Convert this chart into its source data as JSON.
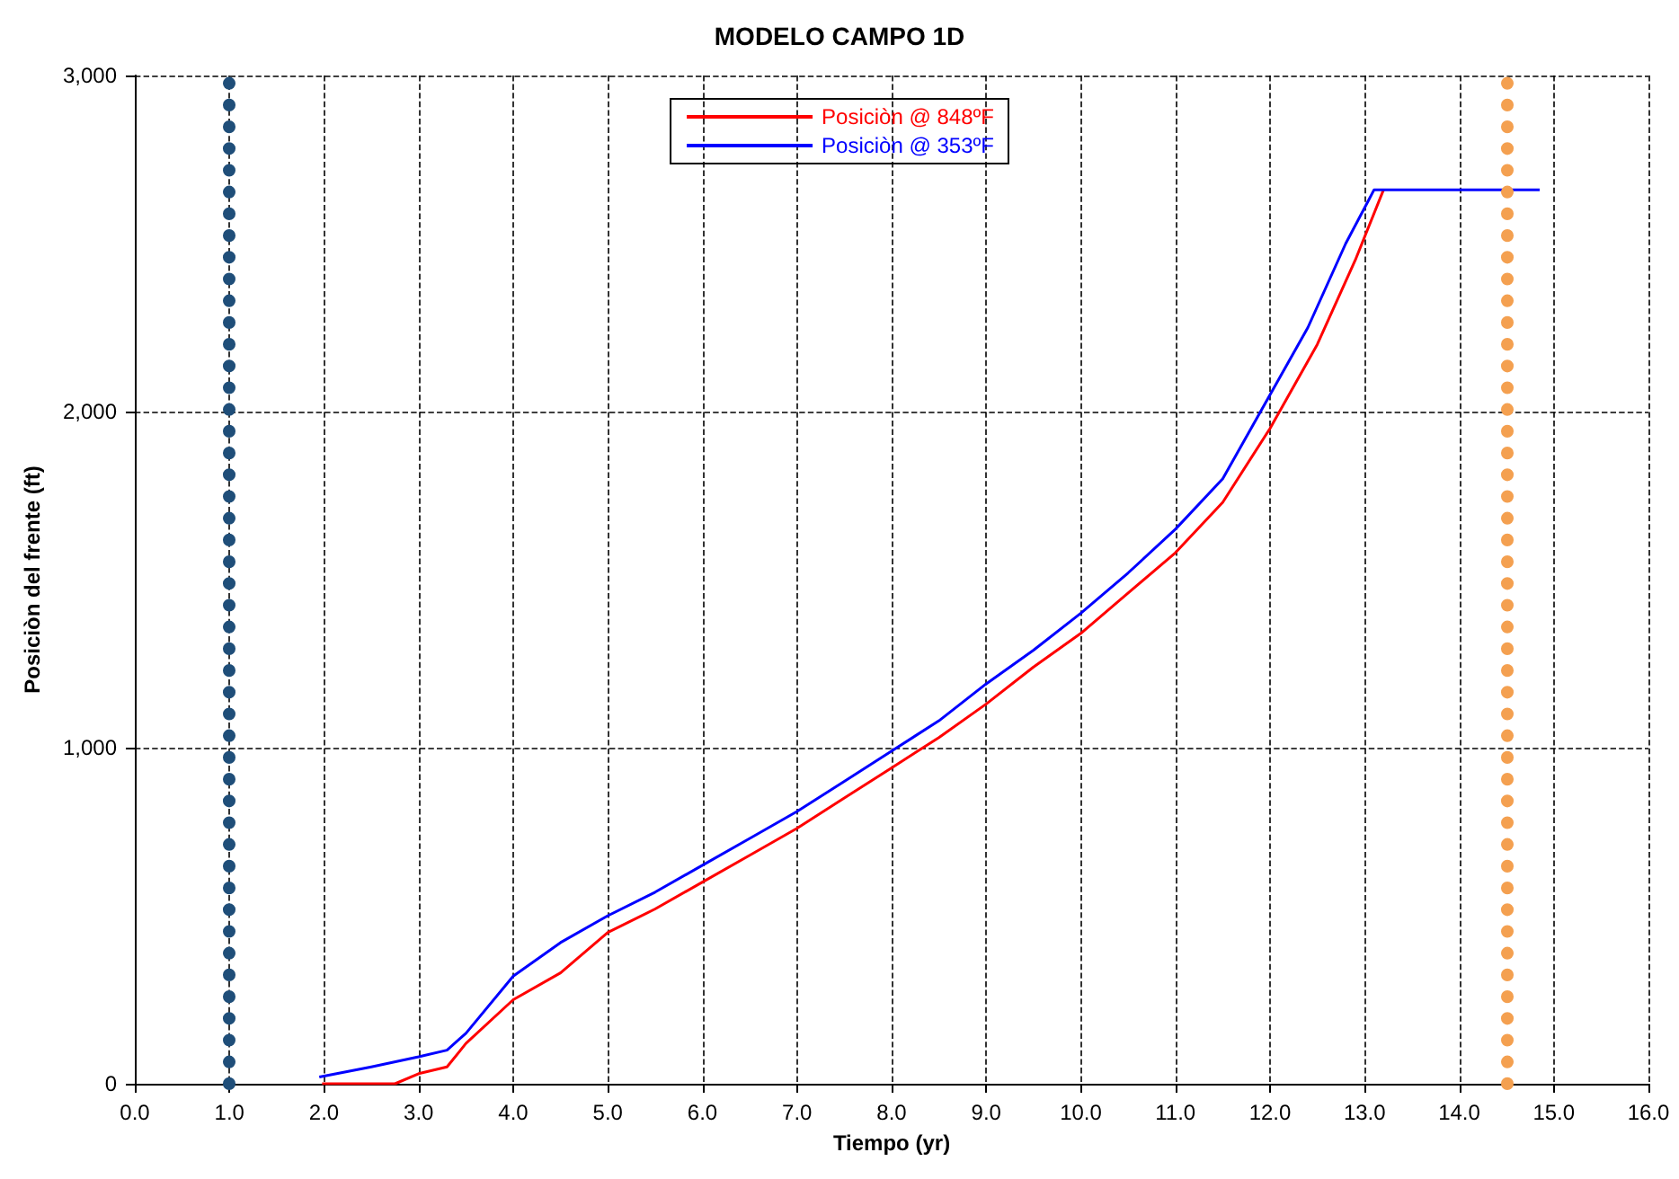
{
  "chart_data": {
    "type": "line",
    "title": "MODELO CAMPO 1D",
    "xlabel": "Tiempo (yr)",
    "ylabel": "Posiciòn del frente (ft)",
    "xlim": [
      0,
      16
    ],
    "ylim": [
      0,
      3000
    ],
    "xticks": [
      {
        "value": 0,
        "label": "0.0"
      },
      {
        "value": 1,
        "label": "1.0"
      },
      {
        "value": 2,
        "label": "2.0"
      },
      {
        "value": 3,
        "label": "3.0"
      },
      {
        "value": 4,
        "label": "4.0"
      },
      {
        "value": 5,
        "label": "5.0"
      },
      {
        "value": 6,
        "label": "6.0"
      },
      {
        "value": 7,
        "label": "7.0"
      },
      {
        "value": 8,
        "label": "8.0"
      },
      {
        "value": 9,
        "label": "9.0"
      },
      {
        "value": 10,
        "label": "10.0"
      },
      {
        "value": 11,
        "label": "11.0"
      },
      {
        "value": 12,
        "label": "12.0"
      },
      {
        "value": 13,
        "label": "13.0"
      },
      {
        "value": 14,
        "label": "14.0"
      },
      {
        "value": 15,
        "label": "15.0"
      },
      {
        "value": 16,
        "label": "16.0"
      }
    ],
    "yticks": [
      0,
      {
        "value": 1000,
        "label": "1,000"
      },
      {
        "value": 2000,
        "label": "2,000"
      },
      {
        "value": 3000,
        "label": "3,000"
      }
    ],
    "grid": true,
    "legend": "top",
    "marker": "none",
    "line_style": "solid",
    "series": [
      {
        "name": "Posiciòn @ 848ºF",
        "color": "#ff0000",
        "x": [
          1.98,
          2.75,
          3.0,
          3.3,
          3.5,
          4.0,
          4.5,
          5.0,
          5.5,
          6.0,
          6.5,
          7.0,
          7.5,
          8.0,
          8.5,
          9.0,
          9.5,
          10.0,
          10.5,
          11.0,
          11.5,
          12.0,
          12.5,
          12.9,
          13.2
        ],
        "values": [
          0,
          0,
          30,
          50,
          120,
          250,
          330,
          450,
          520,
          600,
          680,
          760,
          850,
          940,
          1030,
          1130,
          1240,
          1340,
          1460,
          1580,
          1730,
          1950,
          2200,
          2450,
          2660
        ]
      },
      {
        "name": "Posiciòn @ 353ºF",
        "color": "#0000ff",
        "x": [
          1.95,
          2.5,
          3.0,
          3.3,
          3.5,
          4.0,
          4.5,
          5.0,
          5.5,
          6.0,
          6.5,
          7.0,
          7.5,
          8.0,
          8.5,
          9.0,
          9.5,
          10.0,
          10.5,
          11.0,
          11.5,
          11.9,
          12.4,
          12.8,
          13.1,
          14.85
        ],
        "values": [
          20,
          50,
          80,
          100,
          150,
          320,
          420,
          500,
          570,
          650,
          730,
          810,
          900,
          990,
          1080,
          1190,
          1290,
          1400,
          1520,
          1650,
          1800,
          2000,
          2250,
          2500,
          2660,
          2660
        ]
      }
    ],
    "ref_lines": [
      {
        "axis": "x",
        "value": 1.0,
        "color": "#1f4e79",
        "line_style": "dotted"
      },
      {
        "axis": "x",
        "value": 14.5,
        "color": "#f4a050",
        "line_style": "dotted"
      }
    ]
  }
}
